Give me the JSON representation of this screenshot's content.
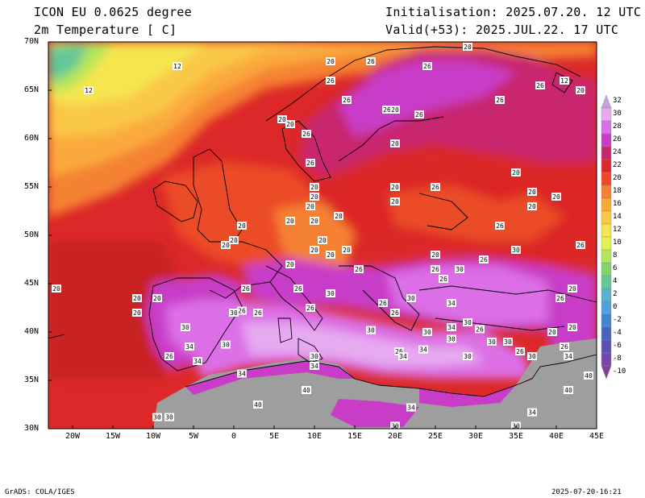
{
  "header": {
    "model": "ICON EU 0.0625 degree",
    "variable": "2m Temperature [ C]",
    "init": "Initialisation: 2025.07.20. 12 UTC",
    "valid": "Valid(+53): 2025.JUL.22. 17 UTC"
  },
  "axes": {
    "lon_labels": [
      "20W",
      "15W",
      "10W",
      "5W",
      "0",
      "5E",
      "10E",
      "15E",
      "20E",
      "25E",
      "30E",
      "35E",
      "40E",
      "45E"
    ],
    "lat_labels": [
      "70N",
      "65N",
      "60N",
      "55N",
      "50N",
      "45N",
      "40N",
      "35N",
      "30N"
    ],
    "lon_range": [
      -23,
      45
    ],
    "lat_range": [
      30,
      70
    ]
  },
  "colorbar": {
    "labels": [
      "32",
      "30",
      "28",
      "26",
      "24",
      "22",
      "20",
      "18",
      "16",
      "14",
      "12",
      "10",
      "8",
      "6",
      "4",
      "2",
      "0",
      "-2",
      "-4",
      "-6",
      "-8",
      "-10"
    ],
    "colors": [
      "#c8a0dc",
      "#e6aaf0",
      "#dc6ee6",
      "#c83cc8",
      "#c8286e",
      "#dc2828",
      "#eb4b28",
      "#f58232",
      "#faaa3c",
      "#fac846",
      "#f5e650",
      "#e6f050",
      "#b4e65a",
      "#82d26e",
      "#64c896",
      "#5ab4c8",
      "#50a0dc",
      "#4682d2",
      "#4664be",
      "#5a50b4",
      "#7846aa",
      "#8c3c96"
    ]
  },
  "contour_labels": [
    {
      "t": "12",
      "lon": -18,
      "lat": 65
    },
    {
      "t": "12",
      "lon": -7,
      "lat": 67.5
    },
    {
      "t": "12",
      "lon": 41,
      "lat": 66
    },
    {
      "t": "20",
      "lon": 12,
      "lat": 68
    },
    {
      "t": "20",
      "lon": 29,
      "lat": 69.5
    },
    {
      "t": "20",
      "lon": 43,
      "lat": 65
    },
    {
      "t": "26",
      "lon": 17,
      "lat": 68
    },
    {
      "t": "26",
      "lon": 24,
      "lat": 67.5
    },
    {
      "t": "26",
      "lon": 12,
      "lat": 66
    },
    {
      "t": "26",
      "lon": 14,
      "lat": 64
    },
    {
      "t": "26",
      "lon": 19,
      "lat": 63
    },
    {
      "t": "26",
      "lon": 23,
      "lat": 62.5
    },
    {
      "t": "26",
      "lon": 33,
      "lat": 64
    },
    {
      "t": "26",
      "lon": 38,
      "lat": 65.5
    },
    {
      "t": "26",
      "lon": 9,
      "lat": 60.5
    },
    {
      "t": "26",
      "lon": 9.5,
      "lat": 57.5
    },
    {
      "t": "20",
      "lon": 20,
      "lat": 63
    },
    {
      "t": "20",
      "lon": 6,
      "lat": 62
    },
    {
      "t": "20",
      "lon": 7,
      "lat": 61.5
    },
    {
      "t": "20",
      "lon": 20,
      "lat": 59.5
    },
    {
      "t": "20",
      "lon": 20,
      "lat": 55
    },
    {
      "t": "26",
      "lon": 25,
      "lat": 55
    },
    {
      "t": "20",
      "lon": 10,
      "lat": 55
    },
    {
      "t": "20",
      "lon": 10,
      "lat": 54
    },
    {
      "t": "20",
      "lon": 13,
      "lat": 52
    },
    {
      "t": "20",
      "lon": 20,
      "lat": 53.5
    },
    {
      "t": "20",
      "lon": 35,
      "lat": 56.5
    },
    {
      "t": "20",
      "lon": 37,
      "lat": 54.5
    },
    {
      "t": "20",
      "lon": 40,
      "lat": 54
    },
    {
      "t": "20",
      "lon": 37,
      "lat": 53
    },
    {
      "t": "20",
      "lon": 9.5,
      "lat": 53
    },
    {
      "t": "20",
      "lon": 10,
      "lat": 51.5
    },
    {
      "t": "20",
      "lon": 11,
      "lat": 49.5
    },
    {
      "t": "20",
      "lon": 10,
      "lat": 48.5
    },
    {
      "t": "20",
      "lon": 12,
      "lat": 48
    },
    {
      "t": "20",
      "lon": 14,
      "lat": 48.5
    },
    {
      "t": "20",
      "lon": 7,
      "lat": 51.5
    },
    {
      "t": "20",
      "lon": 1,
      "lat": 51
    },
    {
      "t": "20",
      "lon": -1,
      "lat": 49
    },
    {
      "t": "20",
      "lon": 0,
      "lat": 49.5
    },
    {
      "t": "20",
      "lon": 7,
      "lat": 47
    },
    {
      "t": "26",
      "lon": 33,
      "lat": 51
    },
    {
      "t": "26",
      "lon": 43,
      "lat": 49
    },
    {
      "t": "30",
      "lon": 35,
      "lat": 48.5
    },
    {
      "t": "26",
      "lon": 31,
      "lat": 47.5
    },
    {
      "t": "30",
      "lon": 28,
      "lat": 46.5
    },
    {
      "t": "20",
      "lon": 25,
      "lat": 48
    },
    {
      "t": "26",
      "lon": 15.5,
      "lat": 46.5
    },
    {
      "t": "26",
      "lon": 25,
      "lat": 46.5
    },
    {
      "t": "26",
      "lon": 26,
      "lat": 45.5
    },
    {
      "t": "26",
      "lon": 1.5,
      "lat": 44.5
    },
    {
      "t": "26",
      "lon": 8,
      "lat": 44.5
    },
    {
      "t": "30",
      "lon": 12,
      "lat": 44
    },
    {
      "t": "20",
      "lon": -9.5,
      "lat": 43.5
    },
    {
      "t": "20",
      "lon": -12,
      "lat": 43.5
    },
    {
      "t": "20",
      "lon": -12,
      "lat": 42
    },
    {
      "t": "20",
      "lon": -22,
      "lat": 44.5
    },
    {
      "t": "30",
      "lon": 0,
      "lat": 42
    },
    {
      "t": "26",
      "lon": 1,
      "lat": 42.2
    },
    {
      "t": "26",
      "lon": 3,
      "lat": 42
    },
    {
      "t": "26",
      "lon": 9.5,
      "lat": 42.5
    },
    {
      "t": "30",
      "lon": -6,
      "lat": 40.5
    },
    {
      "t": "26",
      "lon": 18.5,
      "lat": 43
    },
    {
      "t": "26",
      "lon": 20,
      "lat": 42
    },
    {
      "t": "30",
      "lon": 22,
      "lat": 43.5
    },
    {
      "t": "34",
      "lon": 27,
      "lat": 43
    },
    {
      "t": "30",
      "lon": 29,
      "lat": 41
    },
    {
      "t": "26",
      "lon": 30.5,
      "lat": 40.3
    },
    {
      "t": "34",
      "lon": 27,
      "lat": 40.5
    },
    {
      "t": "30",
      "lon": 24,
      "lat": 40
    },
    {
      "t": "34",
      "lon": 23.5,
      "lat": 38.2
    },
    {
      "t": "30",
      "lon": 27,
      "lat": 39.3
    },
    {
      "t": "30",
      "lon": 32,
      "lat": 39
    },
    {
      "t": "30",
      "lon": 34,
      "lat": 39
    },
    {
      "t": "26",
      "lon": 35.5,
      "lat": 38
    },
    {
      "t": "30",
      "lon": 37,
      "lat": 37.5
    },
    {
      "t": "20",
      "lon": 39.5,
      "lat": 40
    },
    {
      "t": "20",
      "lon": 42,
      "lat": 40.5
    },
    {
      "t": "26",
      "lon": 41,
      "lat": 38.5
    },
    {
      "t": "34",
      "lon": 41.5,
      "lat": 37.5
    },
    {
      "t": "26",
      "lon": 40.5,
      "lat": 43.5
    },
    {
      "t": "20",
      "lon": 42,
      "lat": 44.5
    },
    {
      "t": "26",
      "lon": 20.5,
      "lat": 38
    },
    {
      "t": "34",
      "lon": 21,
      "lat": 37.5
    },
    {
      "t": "30",
      "lon": 17,
      "lat": 40.2
    },
    {
      "t": "26",
      "lon": -8,
      "lat": 37.5
    },
    {
      "t": "34",
      "lon": -5.5,
      "lat": 38.5
    },
    {
      "t": "30",
      "lon": -1,
      "lat": 38.7
    },
    {
      "t": "34",
      "lon": -4.5,
      "lat": 37
    },
    {
      "t": "34",
      "lon": 1,
      "lat": 35.7
    },
    {
      "t": "30",
      "lon": 10,
      "lat": 37.5
    },
    {
      "t": "34",
      "lon": 10,
      "lat": 36.5
    },
    {
      "t": "30",
      "lon": 29,
      "lat": 37.5
    },
    {
      "t": "40",
      "lon": 3,
      "lat": 32.5
    },
    {
      "t": "40",
      "lon": 9,
      "lat": 34
    },
    {
      "t": "30",
      "lon": -8,
      "lat": 31.2
    },
    {
      "t": "30",
      "lon": -9.5,
      "lat": 31.2
    },
    {
      "t": "34",
      "lon": 22,
      "lat": 32.2
    },
    {
      "t": "30",
      "lon": 20,
      "lat": 30.3
    },
    {
      "t": "40",
      "lon": 41.5,
      "lat": 34
    },
    {
      "t": "34",
      "lon": 37,
      "lat": 31.7
    },
    {
      "t": "30",
      "lon": 35,
      "lat": 30.3
    },
    {
      "t": "40",
      "lon": 44,
      "lat": 35.5
    }
  ],
  "footer": {
    "left": "GrADS: COLA/IGES",
    "right": "2025-07-20-16:21"
  }
}
